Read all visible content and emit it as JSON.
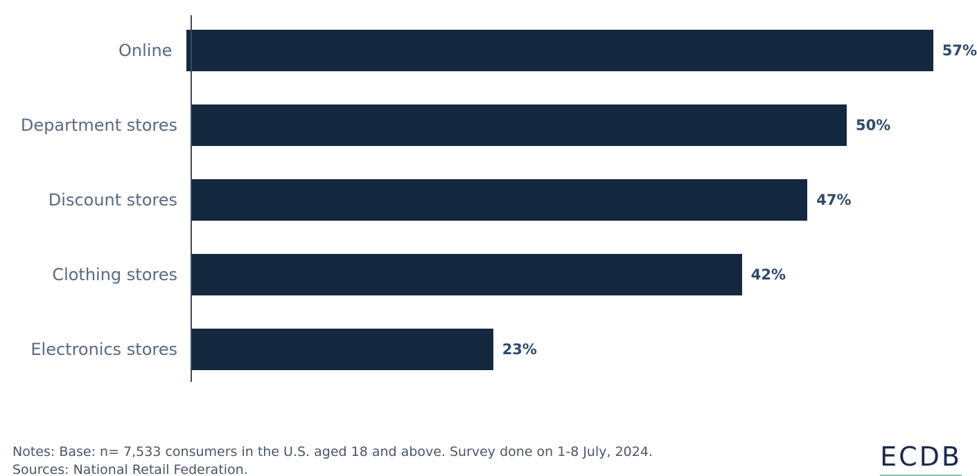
{
  "chart_data": {
    "type": "bar",
    "orientation": "horizontal",
    "title": "",
    "xlabel": "",
    "ylabel": "",
    "categories": [
      "Online",
      "Department stores",
      "Discount stores",
      "Clothing stores",
      "Electronics stores"
    ],
    "values": [
      57,
      50,
      47,
      42,
      23
    ],
    "value_labels": [
      "57%",
      "50%",
      "47%",
      "42%",
      "23%"
    ],
    "xlim": [
      0,
      60
    ],
    "grid": false,
    "legend": "none",
    "bar_color": "#142940",
    "category_label_color": "#5A6A80",
    "value_label_color": "#2F4A6E",
    "axis_color": "#3a4a5c"
  },
  "footer": {
    "notes": "Notes: Base: n= 7,533 consumers in the U.S. aged 18 and above. Survey done on 1-8 July, 2024.",
    "sources": "Sources: National Retail Federation.",
    "logo_text": "ECDB",
    "logo_color": "#1C2B4C",
    "logo_underline_color": "#79C9B5"
  }
}
